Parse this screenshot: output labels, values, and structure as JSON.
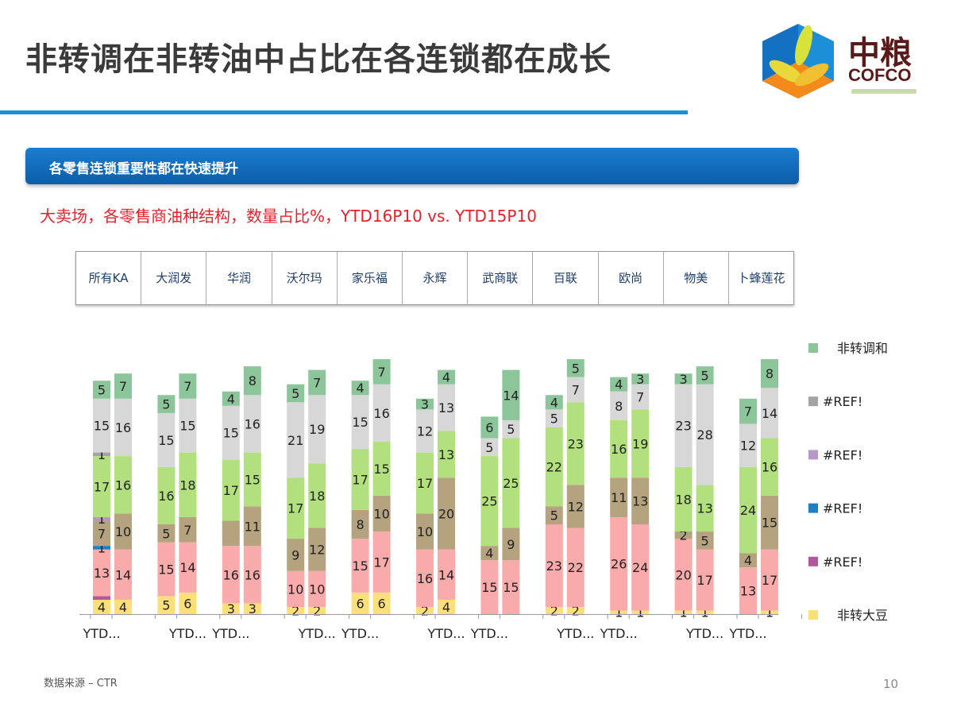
{
  "title": "非转调在非转油中占比在各连锁都在成长",
  "logo": {
    "cn": "中粮",
    "en": "COFCO"
  },
  "banner": "各零售连锁重要性都在快速提升",
  "subtitle": "大卖场，各零售商油种结构，数量占比%，YTD16P10 vs. YTD15P10",
  "stores": [
    "所有KA",
    "大润发",
    "华润",
    "沃尔玛",
    "家乐福",
    "永辉",
    "武商联",
    "百联",
    "欧尚",
    "物美",
    "卜蜂莲花"
  ],
  "footer": "数据来源 – CTR",
  "page_number": "10",
  "chart_data": {
    "type": "bar",
    "stacked": true,
    "title": "",
    "xlabel": "",
    "ylabel": "",
    "categories": [
      "YTD...",
      "YTD...",
      "YTD...",
      "YTD...",
      "YTD...",
      "YTD...",
      "YTD...",
      "YTD...",
      "YTD...",
      "YTD...",
      "YTD...",
      "YTD...",
      "YTD...",
      "YTD...",
      "YTD...",
      "YTD...",
      "YTD...",
      "YTD...",
      "YTD...",
      "YTD...",
      "YTD...",
      "YTD..."
    ],
    "legend_position": "right",
    "grid": false,
    "series": [
      {
        "name": "非转大豆",
        "color": "#fbe07a",
        "values": [
          4,
          4,
          5,
          6,
          3,
          3,
          2,
          2,
          6,
          6,
          2,
          4,
          0,
          0,
          2,
          2,
          1,
          1,
          1,
          1,
          0,
          1
        ]
      },
      {
        "name": "#REF!",
        "color": "#b5559a",
        "values": [
          1,
          0,
          0,
          0,
          0,
          0,
          0,
          0,
          0,
          0,
          0,
          0,
          0,
          0,
          0,
          0,
          0,
          0,
          0,
          0,
          0,
          0
        ]
      },
      {
        "color": "#f9aaab",
        "values": [
          13,
          14,
          15,
          14,
          16,
          16,
          10,
          10,
          15,
          17,
          16,
          14,
          15,
          15,
          23,
          22,
          26,
          24,
          20,
          17,
          13,
          17
        ]
      },
      {
        "name": "#REF!",
        "color": "#1f7fc4",
        "values": [
          1,
          0,
          0,
          0,
          0,
          0,
          0,
          0,
          0,
          0,
          0,
          0,
          0,
          0,
          0,
          0,
          0,
          0,
          0,
          0,
          0,
          0
        ]
      },
      {
        "color": "#b5a27e",
        "values": [
          7,
          10,
          5,
          7,
          7,
          11,
          9,
          12,
          8,
          10,
          10,
          20,
          4,
          9,
          5,
          12,
          11,
          13,
          2,
          5,
          4,
          15
        ]
      },
      {
        "name": "#REF!",
        "color": "#b597c9",
        "values": [
          1,
          0,
          0,
          0,
          0,
          0,
          0,
          0,
          0,
          0,
          0,
          0,
          0,
          0,
          0,
          0,
          0,
          0,
          0,
          0,
          0,
          0
        ]
      },
      {
        "color": "#b3e07f",
        "values": [
          17,
          16,
          16,
          18,
          17,
          15,
          17,
          18,
          17,
          15,
          17,
          13,
          25,
          25,
          22,
          23,
          16,
          19,
          18,
          13,
          24,
          16
        ]
      },
      {
        "name": "#REF!",
        "color": "#a3a3a3",
        "values": [
          1,
          0,
          0,
          0,
          0,
          0,
          0,
          0,
          0,
          0,
          0,
          0,
          0,
          0,
          0,
          0,
          0,
          0,
          0,
          0,
          0,
          0
        ]
      },
      {
        "color": "#d7d7d7",
        "values": [
          15,
          16,
          15,
          15,
          15,
          16,
          21,
          19,
          15,
          16,
          12,
          13,
          5,
          5,
          5,
          7,
          8,
          7,
          23,
          28,
          12,
          14
        ]
      },
      {
        "name": "非转调和",
        "color": "#8dc59b",
        "values": [
          5,
          7,
          5,
          7,
          4,
          8,
          5,
          7,
          4,
          7,
          3,
          4,
          6,
          14,
          4,
          5,
          4,
          3,
          3,
          5,
          7,
          8
        ]
      }
    ],
    "legend": [
      {
        "label": "非转调和",
        "color": "#8dc59b"
      },
      {
        "label": "#REF!",
        "color": "#a3a3a3"
      },
      {
        "label": "#REF!",
        "color": "#b597c9"
      },
      {
        "label": "#REF!",
        "color": "#1f7fc4"
      },
      {
        "label": "#REF!",
        "color": "#b5559a"
      },
      {
        "label": "非转大豆",
        "color": "#fbe07a"
      }
    ]
  }
}
